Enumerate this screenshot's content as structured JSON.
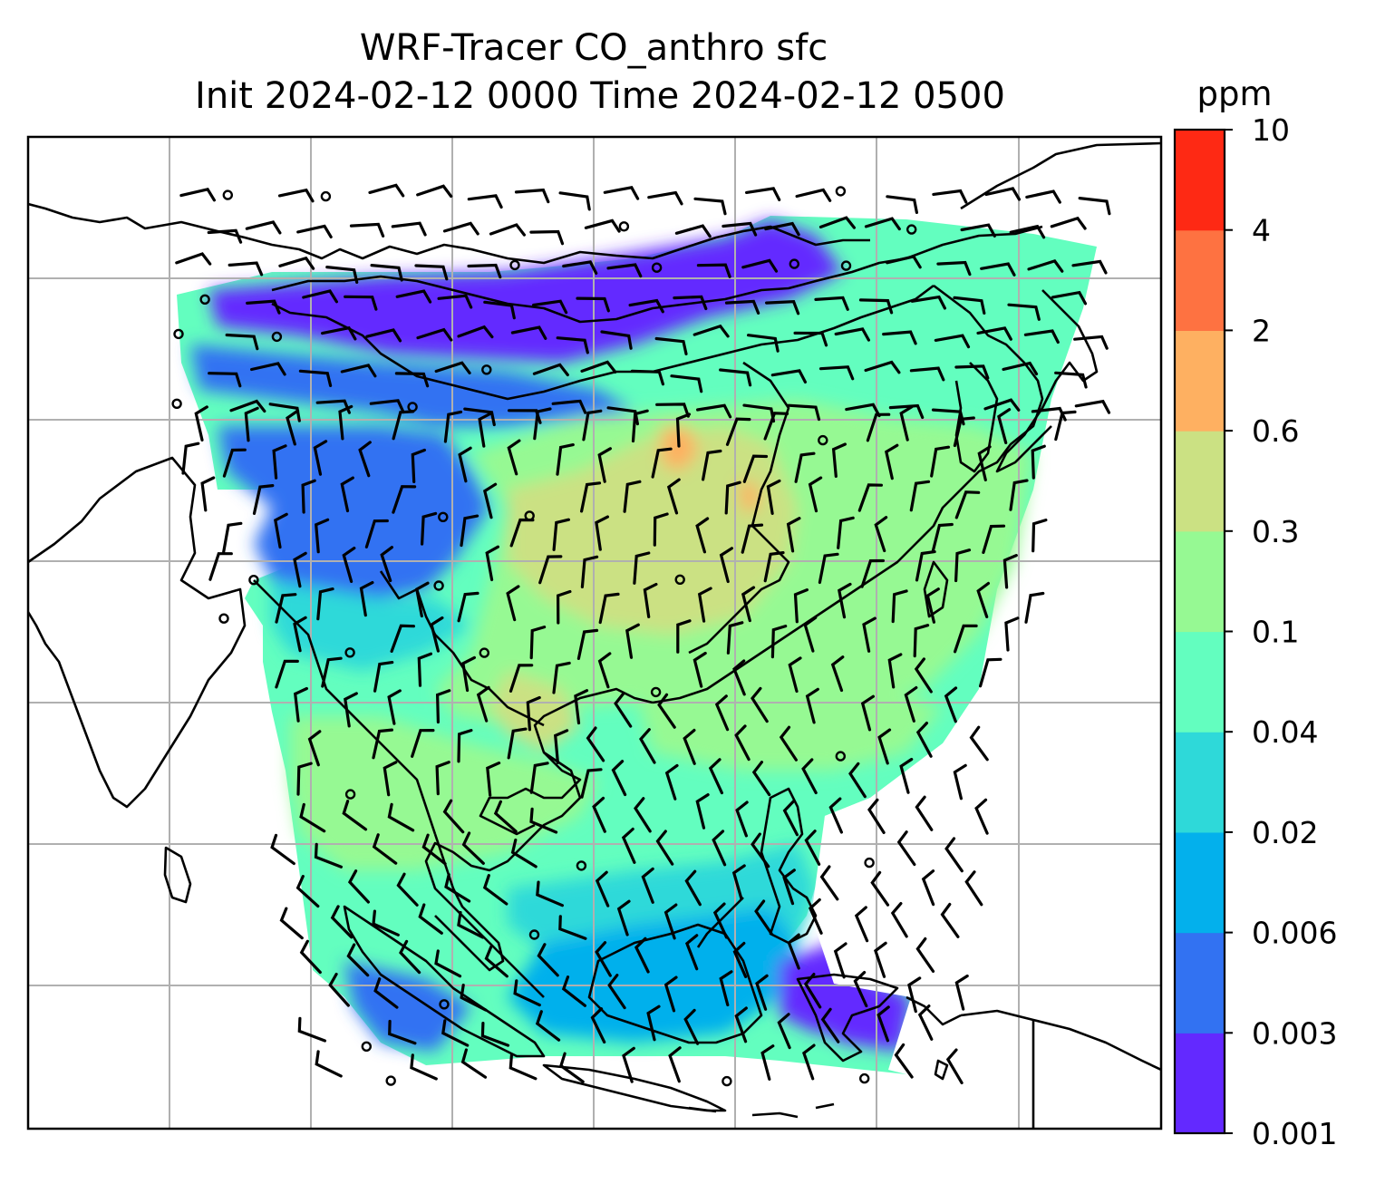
{
  "title_line1": "WRF-Tracer CO_anthro sfc",
  "title_line2": "Init 2024-02-12 0000 Time 2024-02-12 0500",
  "colorbar": {
    "unit": "ppm",
    "levels": [
      "0.001",
      "0.003",
      "0.006",
      "0.02",
      "0.04",
      "0.1",
      "0.3",
      "0.6",
      "2",
      "4",
      "10"
    ],
    "colors": [
      "#6329FF",
      "#3272F2",
      "#03B0EC",
      "#2ED9D9",
      "#63FEBF",
      "#96F993",
      "#CBE183",
      "#FEB061",
      "#FE7241",
      "#FE2914"
    ]
  },
  "map": {
    "variable": "CO_anthro",
    "level": "sfc",
    "overlay": "wind barbs",
    "gridlines": true,
    "coastlines": true
  }
}
